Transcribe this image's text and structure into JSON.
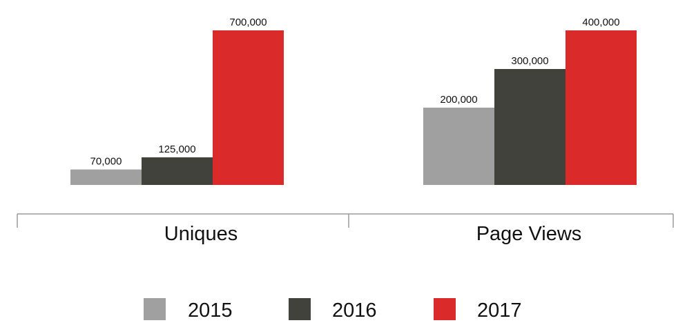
{
  "chart_data": {
    "type": "bar",
    "categories": [
      "Uniques",
      "Page Views"
    ],
    "series": [
      {
        "name": "2015",
        "color": "#a0a0a0",
        "values": [
          70000,
          200000
        ],
        "labels": [
          "70,000",
          "200,000"
        ]
      },
      {
        "name": "2016",
        "color": "#42423c",
        "values": [
          125000,
          300000
        ],
        "labels": [
          "125,000",
          "300,000"
        ]
      },
      {
        "name": "2017",
        "color": "#db2a2a",
        "values": [
          700000,
          400000
        ],
        "labels": [
          "700,000",
          "400,000"
        ]
      }
    ],
    "title": "",
    "xlabel": "",
    "ylabel": "",
    "grid": false,
    "legend": "bottom-center"
  }
}
